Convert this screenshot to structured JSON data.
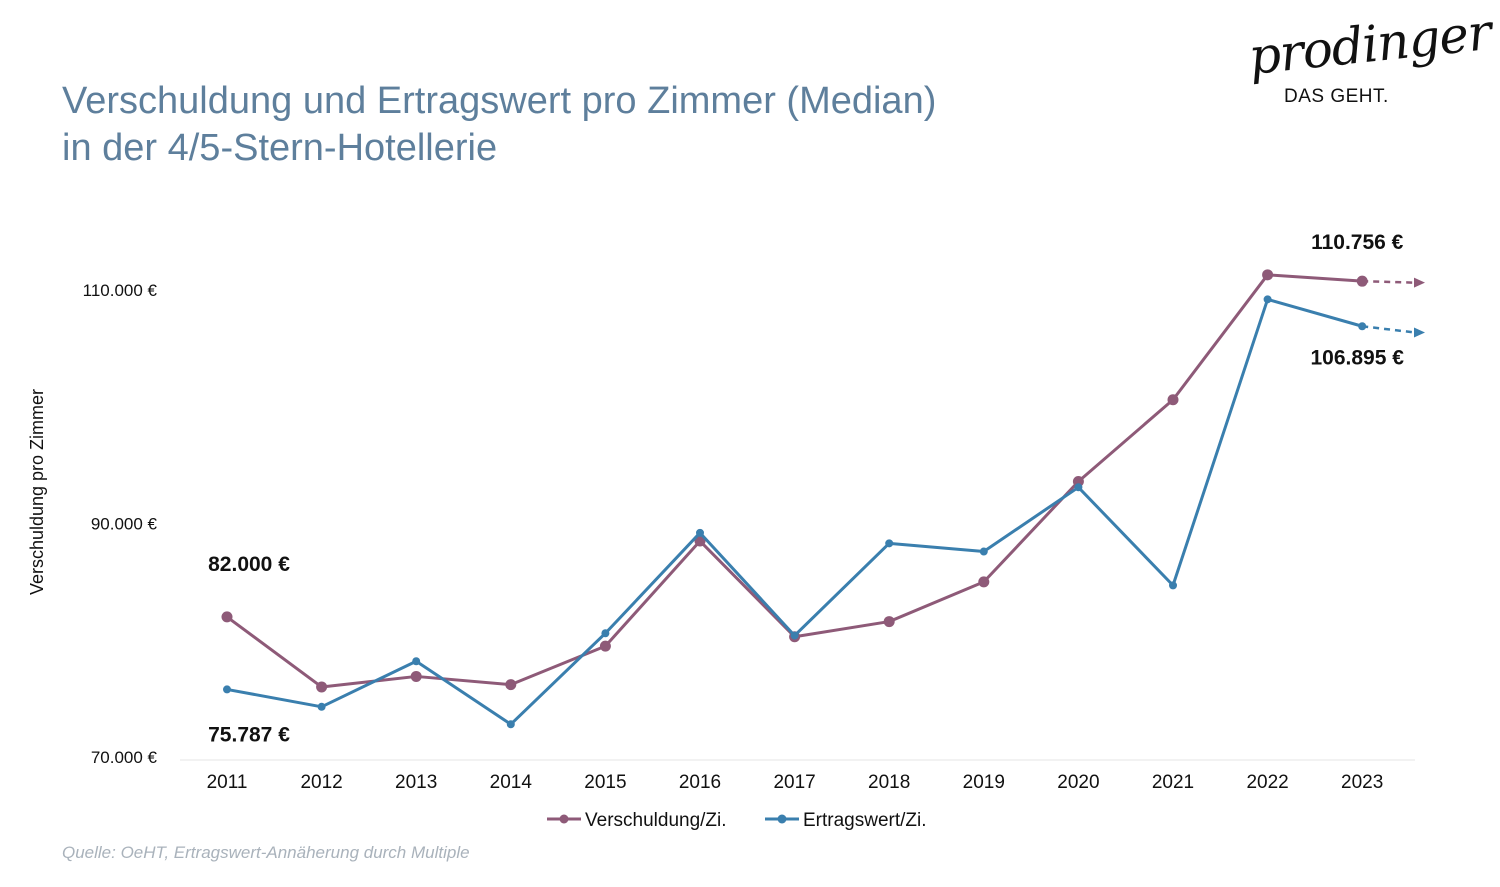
{
  "title": {
    "line1": "Verschuldung und Ertragswert pro Zimmer (Median)",
    "line2": "in der 4/5-Stern-Hotellerie"
  },
  "logo": {
    "script": "prodinger",
    "tagline": "DAS GEHT."
  },
  "footer": {
    "source": "Quelle: OeHT, Ertragswert-Annäherung durch Multiple"
  },
  "chart_data": {
    "type": "line",
    "ylabel": "Verschuldung pro Zimmer",
    "xlabel": "",
    "ylim": [
      70000,
      110000
    ],
    "yticks": [
      {
        "value": 110000,
        "label": "110.000 €"
      },
      {
        "value": 90000,
        "label": "90.000 €"
      },
      {
        "value": 70000,
        "label": "70.000 €"
      }
    ],
    "categories": [
      "2011",
      "2012",
      "2013",
      "2014",
      "2015",
      "2016",
      "2017",
      "2018",
      "2019",
      "2020",
      "2021",
      "2022",
      "2023"
    ],
    "grid": false,
    "legend_position": "bottom",
    "series": [
      {
        "name": "Verschuldung/Zi.",
        "color": "#8e5a78",
        "values": [
          82000,
          76000,
          76900,
          76200,
          79500,
          88500,
          80300,
          81600,
          85000,
          93600,
          100600,
          111300,
          110756
        ],
        "trend": "continues"
      },
      {
        "name": "Ertragswert/Zi.",
        "color": "#3a7fae",
        "values": [
          75787,
          74300,
          78200,
          72800,
          80600,
          89200,
          80400,
          88300,
          87600,
          93100,
          84700,
          109200,
          106895
        ],
        "trend": "continues"
      }
    ],
    "annotations": [
      {
        "text": "82.000 €",
        "series": 0,
        "index": 0,
        "placement": "above"
      },
      {
        "text": "75.787 €",
        "series": 1,
        "index": 0,
        "placement": "below"
      },
      {
        "text": "110.756 €",
        "series": 0,
        "index": 12,
        "placement": "above"
      },
      {
        "text": "106.895 €",
        "series": 1,
        "index": 12,
        "placement": "below"
      }
    ]
  }
}
